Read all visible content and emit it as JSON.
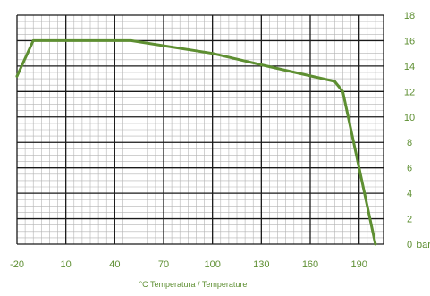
{
  "chart_data": {
    "type": "line",
    "title": "",
    "xlabel": "°C Temperatura / Temperature",
    "ylabel": "",
    "y_unit_label": "bar",
    "xlim": [
      -20,
      205
    ],
    "ylim": [
      0,
      18
    ],
    "x_ticks": [
      -20,
      10,
      40,
      70,
      100,
      130,
      160,
      190
    ],
    "x_tick_labels": [
      "-20",
      "10",
      "40",
      "70",
      "100",
      "130",
      "160",
      "190"
    ],
    "y_ticks": [
      0,
      2,
      4,
      6,
      8,
      10,
      12,
      14,
      16,
      18
    ],
    "y_tick_labels": [
      "0",
      "2",
      "4",
      "6",
      "8",
      "10",
      "12",
      "14",
      "16",
      "18"
    ],
    "grid": true,
    "legend": "none",
    "series": [
      {
        "color": "#5e8f32",
        "points": [
          {
            "x": -20,
            "y": 13.2
          },
          {
            "x": -10,
            "y": 16
          },
          {
            "x": 50,
            "y": 16
          },
          {
            "x": 100,
            "y": 15
          },
          {
            "x": 130,
            "y": 14.1
          },
          {
            "x": 175,
            "y": 12.8
          },
          {
            "x": 180,
            "y": 12
          },
          {
            "x": 200,
            "y": 0
          }
        ]
      }
    ]
  }
}
